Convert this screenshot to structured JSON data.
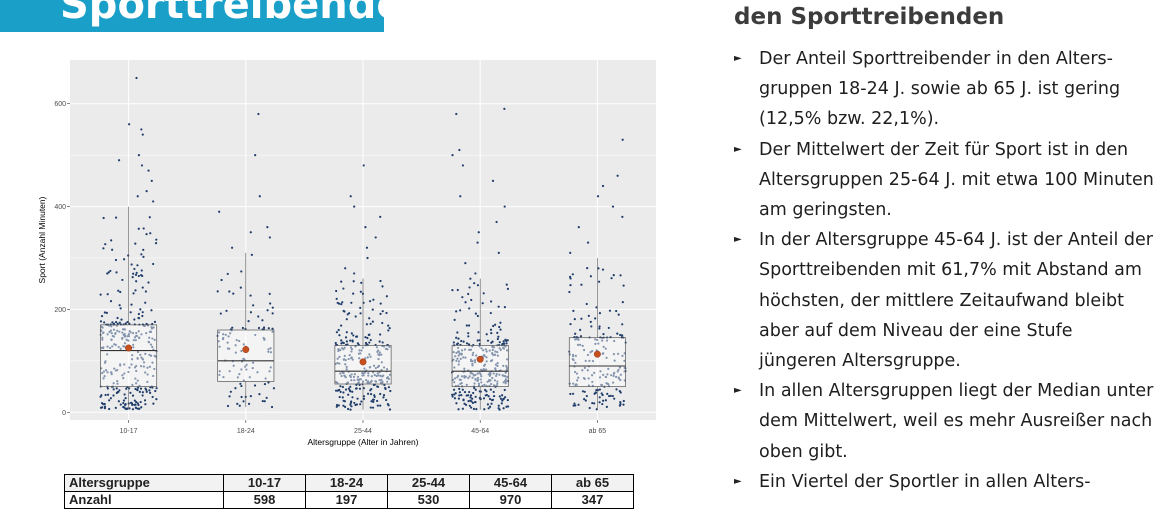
{
  "banner": {
    "title": "Sporttreibende"
  },
  "right": {
    "subtitle": "den Sporttreibenden",
    "bullets": [
      "Der Anteil Sporttreibender in den Alters-gruppen 18-24 J. sowie ab 65 J. ist gering (12,5% bzw. 22,1%).",
      "Der Mittelwert der Zeit für Sport ist in den Altersgruppen 25-64 J. mit etwa 100 Minuten am geringsten.",
      "In der Altersgruppe 45-64 J. ist der Anteil der Sporttreibenden mit 61,7% mit Abstand am höchsten, der mittlere Zeitaufwand bleibt aber auf dem Niveau der eine Stufe jüngeren Altersgruppe.",
      "In allen Altersgruppen liegt der Median unter dem Mittelwert, weil es mehr Ausreißer nach oben gibt.",
      "Ein Viertel der Sportler in allen Alters-"
    ]
  },
  "table": {
    "header_label": "Altersgruppe",
    "row_label": "Anzahl",
    "columns": [
      "10-17",
      "18-24",
      "25-44",
      "45-64",
      "ab 65"
    ],
    "counts": [
      "598",
      "197",
      "530",
      "970",
      "347"
    ]
  },
  "chart_data": {
    "type": "boxplot",
    "xlabel": "Altersgruppe (Alter in Jahren)",
    "ylabel": "Sport (Anzahl Minuten)",
    "categories": [
      "10-17",
      "18-24",
      "25-44",
      "45-64",
      "ab 65"
    ],
    "yticks": [
      0,
      200,
      400,
      600
    ],
    "ylim": [
      -15,
      685
    ],
    "grid": true,
    "boxes": [
      {
        "q1": 50,
        "median": 120,
        "q3": 170,
        "whisker_low": 5,
        "whisker_high": 400,
        "mean": 125,
        "n": 598,
        "outliers": [
          410,
          420,
          430,
          450,
          470,
          480,
          490,
          500,
          540,
          550,
          560,
          650
        ]
      },
      {
        "q1": 60,
        "median": 100,
        "q3": 160,
        "whisker_low": 10,
        "whisker_high": 310,
        "mean": 122,
        "n": 197,
        "outliers": [
          320,
          340,
          350,
          360,
          390,
          420,
          500,
          580
        ]
      },
      {
        "q1": 55,
        "median": 80,
        "q3": 130,
        "whisker_low": 5,
        "whisker_high": 260,
        "mean": 98,
        "n": 530,
        "outliers": [
          270,
          280,
          300,
          320,
          340,
          360,
          380,
          400,
          420,
          480
        ]
      },
      {
        "q1": 50,
        "median": 80,
        "q3": 130,
        "whisker_low": 5,
        "whisker_high": 260,
        "mean": 103,
        "n": 970,
        "outliers": [
          270,
          290,
          310,
          330,
          350,
          370,
          400,
          420,
          450,
          480,
          500,
          510,
          580,
          590
        ]
      },
      {
        "q1": 50,
        "median": 90,
        "q3": 145,
        "whisker_low": 5,
        "whisker_high": 300,
        "mean": 113,
        "n": 347,
        "outliers": [
          310,
          330,
          360,
          380,
          400,
          420,
          440,
          460,
          530
        ]
      }
    ],
    "colors": {
      "points": "#1f3d6b",
      "mean": "#c8501e",
      "panel": "#ebebeb",
      "grid": "#ffffff"
    }
  }
}
